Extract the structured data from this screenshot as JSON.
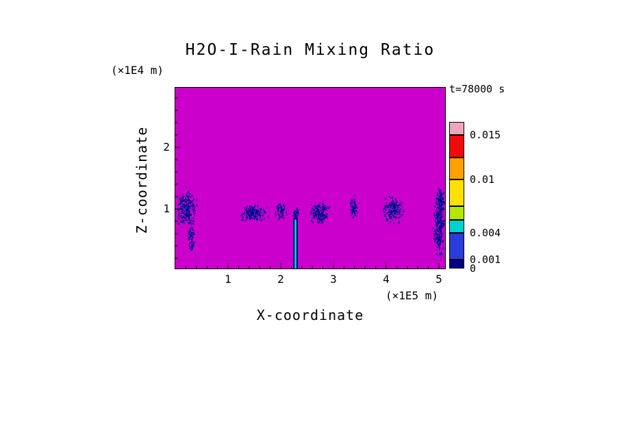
{
  "title": "H2O-I-Rain Mixing Ratio",
  "time_label": "t=78000 s",
  "axes": {
    "x": {
      "label": "X-coordinate",
      "unit": "(×1E5 m)",
      "ticks": [
        1,
        2,
        3,
        4,
        5
      ]
    },
    "z": {
      "label": "Z-coordinate",
      "unit": "(×1E4 m)",
      "ticks": [
        1,
        2
      ]
    }
  },
  "chart_data": {
    "type": "heatmap",
    "title": "H2O-I-Rain Mixing Ratio",
    "xlabel": "X-coordinate (×1E5 m)",
    "ylabel": "Z-coordinate (×1E4 m)",
    "time": "t=78000 s",
    "x_range": [
      0,
      5.13
    ],
    "z_range": [
      0,
      2.97
    ],
    "background_color": "#CC00CC",
    "speckle_colors": [
      "#000082",
      "#1C1CB4",
      "#3A3ACD"
    ],
    "colorbar": {
      "boundaries": [
        0,
        0.001,
        0.004,
        0.0055,
        0.007,
        0.01,
        0.0125,
        0.015,
        0.0165
      ],
      "colors": [
        "#00008B",
        "#2A3CDC",
        "#00D2D2",
        "#B4E600",
        "#FFE100",
        "#FFA000",
        "#F00A0A",
        "#F0A5BE"
      ],
      "tick_labels": [
        {
          "value": 0.015,
          "label": "0.015"
        },
        {
          "value": 0.01,
          "label": "0.01"
        },
        {
          "value": 0.004,
          "label": "0.004"
        },
        {
          "value": 0.001,
          "label": "0.001"
        },
        {
          "value": 0,
          "label": "0"
        }
      ]
    },
    "features": [
      {
        "type": "speckle",
        "cx": 0.2,
        "cz": 1.02,
        "w": 0.5,
        "h": 0.7,
        "density": 260,
        "seed": 101
      },
      {
        "type": "speckle",
        "cx": 0.3,
        "cz": 0.55,
        "w": 0.16,
        "h": 0.6,
        "density": 80,
        "seed": 102
      },
      {
        "type": "speckle",
        "cx": 1.48,
        "cz": 0.95,
        "w": 0.58,
        "h": 0.34,
        "density": 200,
        "seed": 103
      },
      {
        "type": "speckle",
        "cx": 2.0,
        "cz": 1.0,
        "w": 0.26,
        "h": 0.34,
        "density": 70,
        "seed": 104
      },
      {
        "type": "speckle",
        "cx": 2.28,
        "cz": 0.95,
        "w": 0.15,
        "h": 0.22,
        "density": 50,
        "seed": 105
      },
      {
        "type": "shaft",
        "x": 2.28,
        "z_top": 0.86,
        "z_bottom": 0.02,
        "outer_w": 0.09,
        "core_w": 0.035,
        "outer_color": "#000080",
        "core_color": "#00D2D2",
        "seed": 106
      },
      {
        "type": "speckle",
        "cx": 2.72,
        "cz": 0.95,
        "w": 0.48,
        "h": 0.45,
        "density": 190,
        "seed": 107
      },
      {
        "type": "speckle",
        "cx": 3.38,
        "cz": 1.02,
        "w": 0.2,
        "h": 0.45,
        "density": 90,
        "seed": 108
      },
      {
        "type": "speckle",
        "cx": 4.12,
        "cz": 0.98,
        "w": 0.52,
        "h": 0.52,
        "density": 210,
        "seed": 109
      },
      {
        "type": "speckle",
        "cx": 4.99,
        "cz": 0.75,
        "w": 0.24,
        "h": 1.35,
        "density": 300,
        "seed": 110
      },
      {
        "type": "speckle",
        "cx": 5.02,
        "cz": 1.15,
        "w": 0.18,
        "h": 0.45,
        "density": 120,
        "seed": 111
      }
    ]
  }
}
